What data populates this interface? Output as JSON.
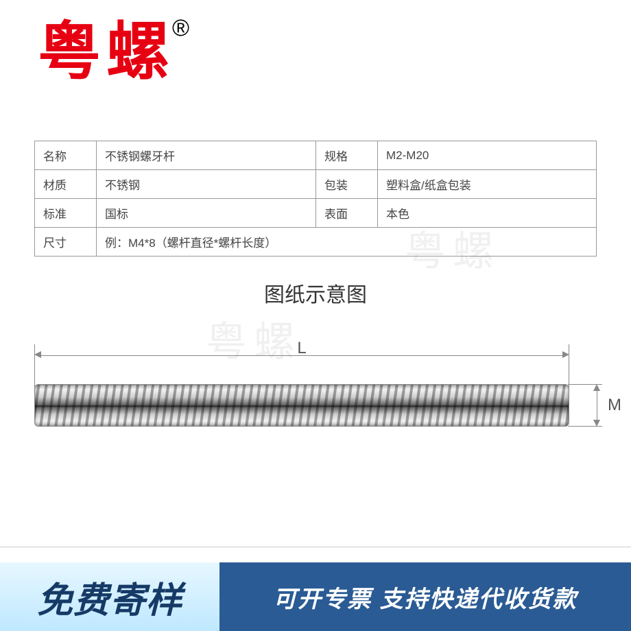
{
  "brand": "粤螺",
  "registered": "®",
  "watermark": "粤螺",
  "table": {
    "rows": [
      {
        "l1": "名称",
        "v1": "不锈钢螺牙杆",
        "l2": "规格",
        "v2": "M2-M20"
      },
      {
        "l1": "材质",
        "v1": "不锈钢",
        "l2": "包装",
        "v2": "塑料盒/纸盒包装"
      },
      {
        "l1": "标准",
        "v1": "国标",
        "l2": "表面",
        "v2": "本色"
      }
    ],
    "last": {
      "l1": "尺寸",
      "v": "例：M4*8（螺杆直径*螺杆长度）"
    }
  },
  "diagram": {
    "title": "图纸示意图",
    "length_label": "L",
    "diameter_label": "M"
  },
  "footer": {
    "left": "免费寄样",
    "right": "可开专票 支持快递代收货款"
  },
  "colors": {
    "brand_red": "#e60012",
    "table_border": "#999999",
    "footer_blue": "#2a5b94",
    "footer_light": "#bfe8ff"
  }
}
